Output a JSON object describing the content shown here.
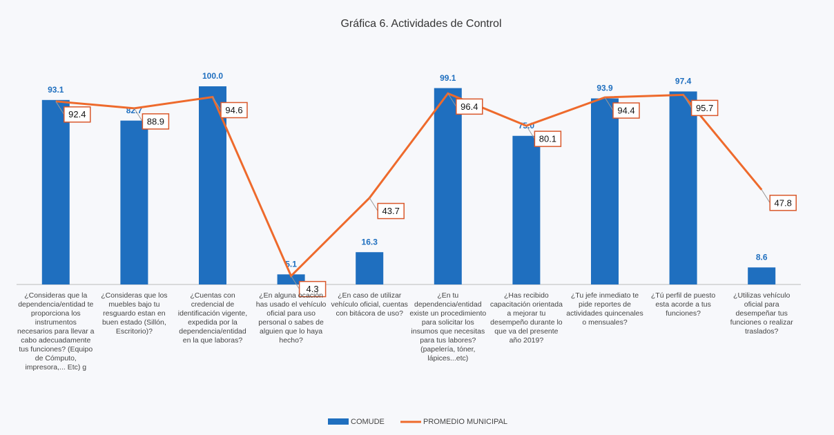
{
  "chart_data": {
    "type": "bar",
    "title": "Gráfica 6. Actividades de Control",
    "categories": [
      "¿Consideras que la dependencia/entidad te proporciona los instrumentos necesarios para llevar a cabo adecuadamente tus funciones? (Equipo de Cómputo, impresora,... Etc) g",
      "¿Consideras que los muebles bajo tu resguardo estan en buen estado (Sillón, Escritorio)?",
      "¿Cuentas con credencial de identificación vigente, expedida por la dependencia/entidad en la que laboras?",
      "¿En alguna ocación has usado el vehículo oficial para uso personal o sabes de alguien que lo haya hecho?",
      "¿En caso de utilizar vehículo oficial, cuentas con bitácora de uso?",
      "¿En tu dependencia/entidad existe un procedimiento para solicitar los insumos que necesitas para tus labores? (papelería, tóner, lápices...etc)",
      "¿Has recibido capacitación orientada a mejorar tu desempeño durante lo que va del presente año 2019?",
      "¿Tu jefe inmediato te pide reportes de actividades quincenales o mensuales?",
      "¿Tú perfil de puesto esta acorde a tus funciones?",
      "¿Utilizas vehículo oficial para desempeñar tus funciones o realizar traslados?"
    ],
    "series": [
      {
        "name": "COMUDE",
        "type": "bar",
        "color": "#1f6fbf",
        "values": [
          93.1,
          82.7,
          100,
          5.1,
          16.3,
          99.1,
          75,
          93.9,
          97.4,
          8.6
        ],
        "value_labels": [
          "93.1",
          "82.7",
          "100.0",
          "5.1",
          "16.3",
          "99.1",
          "75.0",
          "93.9",
          "97.4",
          "8.6"
        ]
      },
      {
        "name": "PROMEDIO MUNICIPAL",
        "type": "line",
        "color": "#ee6a2c",
        "values": [
          92.4,
          88.9,
          94.6,
          4.3,
          43.7,
          96.4,
          80.1,
          94.4,
          95.7,
          47.8
        ],
        "value_labels": [
          "92.4",
          "88.9",
          "94.6",
          "4.3",
          "43.7",
          "96.4",
          "80.1",
          "94.4",
          "95.7",
          "47.8"
        ]
      }
    ]
  }
}
